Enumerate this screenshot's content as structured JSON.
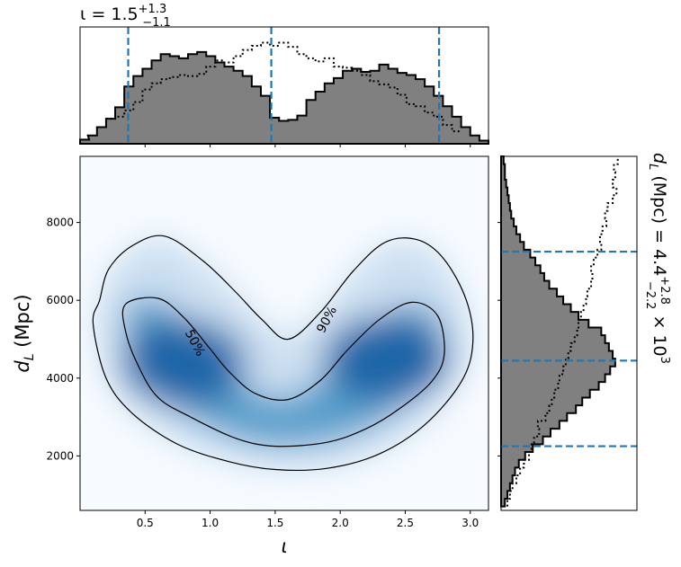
{
  "chart_data": [
    {
      "type": "heatmap",
      "panel": "joint",
      "xlabel": "ι",
      "ylabel_prefix": "d",
      "ylabel_sub": "L",
      "ylabel_suffix": " (Mpc)",
      "xlim": [
        0.0,
        3.14
      ],
      "ylim": [
        600,
        9700
      ],
      "x_ticks": [
        0.5,
        1.0,
        1.5,
        2.0,
        2.5,
        3.0
      ],
      "x_tick_labels": [
        "0.5",
        "1.0",
        "1.5",
        "2.0",
        "2.5",
        "3.0"
      ],
      "y_ticks": [
        2000,
        4000,
        6000,
        8000
      ],
      "y_tick_labels": [
        "2000",
        "4000",
        "6000",
        "8000"
      ],
      "colormap": "Blues",
      "modes": [
        {
          "iota": 0.8,
          "dL": 4400
        },
        {
          "iota": 2.35,
          "dL": 4500
        }
      ],
      "contours": [
        {
          "label": "90%",
          "label_at": {
            "iota": 1.9,
            "dL": 5500
          },
          "label_angle": -62,
          "points": [
            [
              0.15,
              6000
            ],
            [
              0.1,
              5400
            ],
            [
              0.2,
              4000
            ],
            [
              0.4,
              3100
            ],
            [
              0.75,
              2300
            ],
            [
              1.15,
              1850
            ],
            [
              1.5,
              1650
            ],
            [
              1.9,
              1680
            ],
            [
              2.3,
              2050
            ],
            [
              2.65,
              2800
            ],
            [
              2.93,
              3900
            ],
            [
              3.02,
              4900
            ],
            [
              2.97,
              6000
            ],
            [
              2.8,
              7050
            ],
            [
              2.6,
              7550
            ],
            [
              2.35,
              7500
            ],
            [
              2.1,
              6750
            ],
            [
              1.85,
              5700
            ],
            [
              1.6,
              5000
            ],
            [
              1.4,
              5500
            ],
            [
              1.2,
              6200
            ],
            [
              0.95,
              7000
            ],
            [
              0.65,
              7650
            ],
            [
              0.4,
              7400
            ],
            [
              0.22,
              6800
            ]
          ]
        },
        {
          "label": "50%",
          "label_at": {
            "iota": 0.88,
            "dL": 4900
          },
          "label_angle": 62,
          "points": [
            [
              0.35,
              5900
            ],
            [
              0.35,
              5200
            ],
            [
              0.45,
              4300
            ],
            [
              0.6,
              3500
            ],
            [
              0.85,
              3000
            ],
            [
              1.2,
              2450
            ],
            [
              1.5,
              2250
            ],
            [
              1.9,
              2350
            ],
            [
              2.2,
              2700
            ],
            [
              2.45,
              3200
            ],
            [
              2.7,
              3900
            ],
            [
              2.8,
              4600
            ],
            [
              2.75,
              5600
            ],
            [
              2.55,
              5950
            ],
            [
              2.3,
              5500
            ],
            [
              2.05,
              4700
            ],
            [
              1.85,
              3950
            ],
            [
              1.6,
              3450
            ],
            [
              1.35,
              3600
            ],
            [
              1.15,
              4150
            ],
            [
              1.0,
              4750
            ],
            [
              0.8,
              5550
            ],
            [
              0.6,
              6050
            ]
          ]
        }
      ]
    },
    {
      "type": "area",
      "panel": "top-marginal",
      "title_prefix": "ι = 1.5",
      "title_sup": "+1.3",
      "title_sub": "−1.1",
      "dashed_lines": [
        0.37,
        1.47,
        2.76
      ],
      "filled_histogram": {
        "x": [
          0.0,
          0.06,
          0.13,
          0.2,
          0.27,
          0.34,
          0.41,
          0.48,
          0.55,
          0.62,
          0.69,
          0.76,
          0.83,
          0.9,
          0.97,
          1.04,
          1.11,
          1.18,
          1.25,
          1.32,
          1.39,
          1.46,
          1.53,
          1.6,
          1.67,
          1.74,
          1.81,
          1.88,
          1.95,
          2.02,
          2.09,
          2.16,
          2.23,
          2.3,
          2.37,
          2.44,
          2.51,
          2.58,
          2.65,
          2.72,
          2.79,
          2.86,
          2.93,
          3.0,
          3.07
        ],
        "values": [
          0.04,
          0.08,
          0.16,
          0.24,
          0.35,
          0.55,
          0.65,
          0.72,
          0.8,
          0.86,
          0.84,
          0.82,
          0.86,
          0.88,
          0.84,
          0.78,
          0.74,
          0.7,
          0.65,
          0.55,
          0.46,
          0.25,
          0.22,
          0.23,
          0.27,
          0.42,
          0.5,
          0.58,
          0.63,
          0.7,
          0.72,
          0.69,
          0.7,
          0.76,
          0.72,
          0.68,
          0.66,
          0.62,
          0.55,
          0.46,
          0.36,
          0.26,
          0.16,
          0.08,
          0.03
        ]
      },
      "prior_histogram": {
        "x": [
          0.2,
          0.27,
          0.34,
          0.41,
          0.48,
          0.55,
          0.62,
          0.69,
          0.76,
          0.83,
          0.9,
          0.97,
          1.04,
          1.11,
          1.18,
          1.25,
          1.32,
          1.39,
          1.46,
          1.53,
          1.6,
          1.67,
          1.74,
          1.81,
          1.88,
          1.95,
          2.02,
          2.09,
          2.16,
          2.23,
          2.3,
          2.37,
          2.44,
          2.51,
          2.58,
          2.65,
          2.72,
          2.79,
          2.86
        ],
        "values": [
          0.24,
          0.26,
          0.32,
          0.4,
          0.52,
          0.58,
          0.62,
          0.64,
          0.66,
          0.65,
          0.67,
          0.74,
          0.8,
          0.78,
          0.84,
          0.9,
          0.94,
          0.97,
          0.94,
          0.97,
          0.93,
          0.86,
          0.82,
          0.79,
          0.82,
          0.74,
          0.73,
          0.7,
          0.66,
          0.6,
          0.57,
          0.54,
          0.47,
          0.38,
          0.36,
          0.3,
          0.26,
          0.18,
          0.12
        ]
      }
    },
    {
      "type": "area",
      "panel": "right-marginal",
      "title_prefix": "d",
      "title_sub_L": "L",
      "title_mid": " (Mpc) = 4.4",
      "title_sup": "+2.8",
      "title_sub": "−2.2",
      "title_suffix": " × 10",
      "title_exp": "3",
      "dashed_lines": [
        2250,
        4450,
        7250
      ],
      "filled_histogram": {
        "y": [
          700,
          900,
          1100,
          1300,
          1500,
          1700,
          1900,
          2100,
          2300,
          2500,
          2700,
          2900,
          3100,
          3300,
          3500,
          3700,
          3900,
          4100,
          4300,
          4500,
          4700,
          4900,
          5100,
          5300,
          5500,
          5700,
          5900,
          6100,
          6300,
          6500,
          6700,
          6900,
          7100,
          7300,
          7500,
          7700,
          7900,
          8100,
          8300,
          8500,
          8700,
          8900,
          9100,
          9300,
          9500
        ],
        "values": [
          0.03,
          0.05,
          0.07,
          0.09,
          0.11,
          0.14,
          0.19,
          0.25,
          0.33,
          0.39,
          0.46,
          0.52,
          0.59,
          0.64,
          0.7,
          0.77,
          0.82,
          0.86,
          0.9,
          0.88,
          0.85,
          0.82,
          0.79,
          0.69,
          0.61,
          0.55,
          0.49,
          0.44,
          0.38,
          0.34,
          0.31,
          0.27,
          0.23,
          0.18,
          0.15,
          0.12,
          0.1,
          0.08,
          0.07,
          0.06,
          0.05,
          0.04,
          0.03,
          0.03,
          0.02
        ]
      },
      "prior_histogram": {
        "y": [
          700,
          900,
          1100,
          1300,
          1500,
          1700,
          1900,
          2100,
          2300,
          2500,
          2700,
          2900,
          3100,
          3300,
          3500,
          3700,
          3900,
          4100,
          4300,
          4500,
          4700,
          4900,
          5100,
          5300,
          5500,
          5700,
          5900,
          6100,
          6300,
          6500,
          6700,
          6900,
          7100,
          7300,
          7500,
          7700,
          7900,
          8100,
          8300,
          8500,
          8700,
          8900,
          9100,
          9300,
          9500
        ],
        "values": [
          0.05,
          0.07,
          0.09,
          0.12,
          0.15,
          0.18,
          0.22,
          0.24,
          0.26,
          0.3,
          0.29,
          0.35,
          0.38,
          0.4,
          0.42,
          0.45,
          0.46,
          0.49,
          0.51,
          0.53,
          0.55,
          0.58,
          0.6,
          0.61,
          0.63,
          0.65,
          0.67,
          0.68,
          0.71,
          0.72,
          0.71,
          0.73,
          0.76,
          0.79,
          0.78,
          0.8,
          0.83,
          0.82,
          0.84,
          0.88,
          0.91,
          0.88,
          0.9,
          0.89,
          0.92
        ]
      }
    }
  ]
}
